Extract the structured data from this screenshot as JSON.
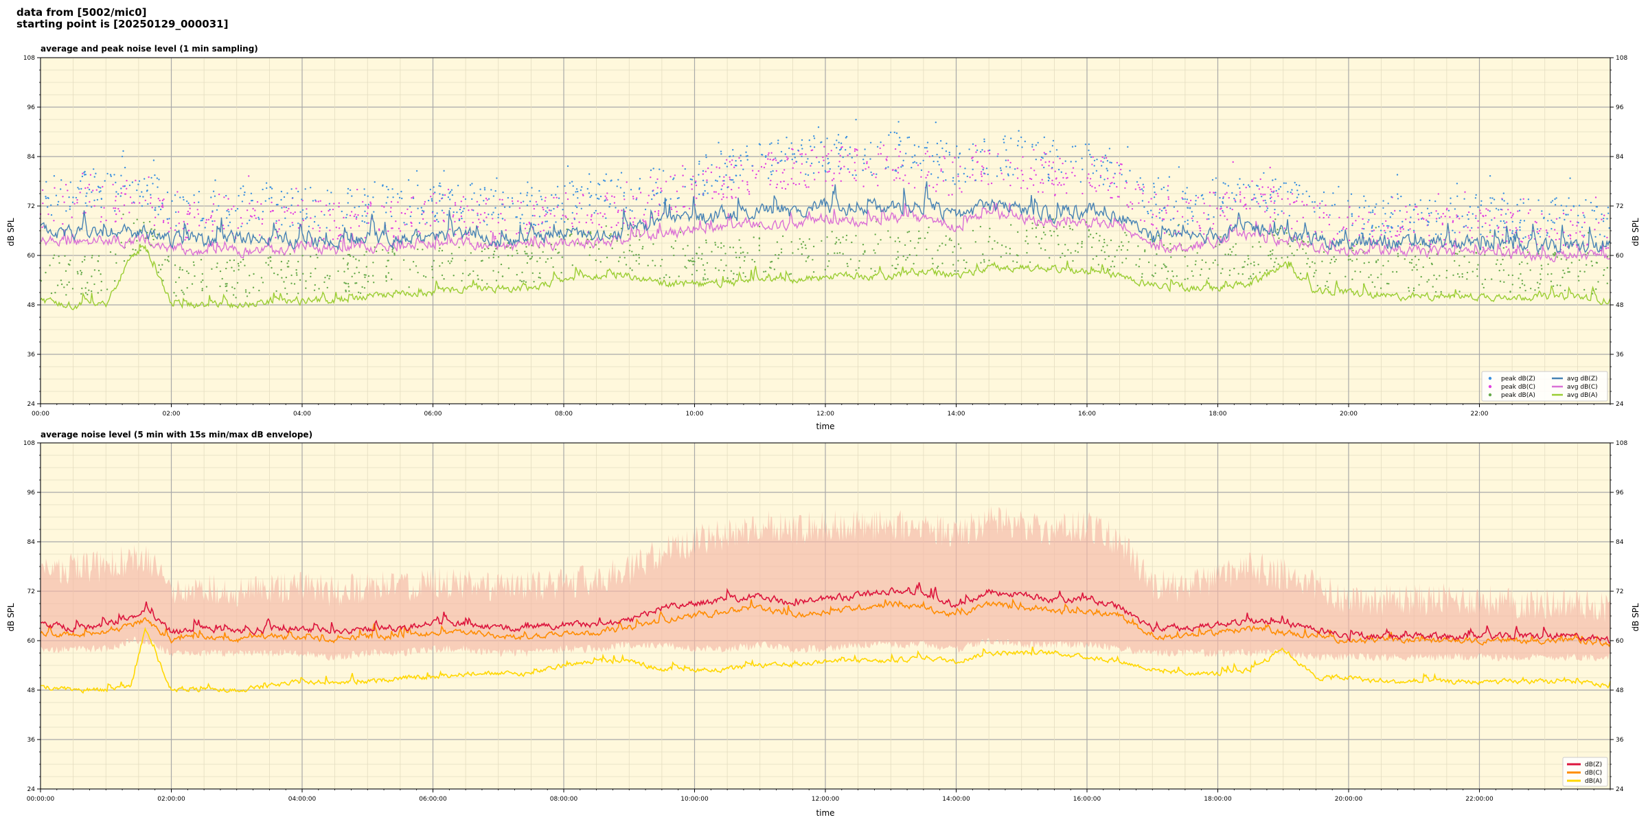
{
  "header": {
    "line1": "data from [5002/mic0]",
    "line2": "starting point is [20250129_000031]"
  },
  "colors": {
    "plot_bg": "#fff8dc",
    "peak_z": "#3a90e0",
    "peak_c": "#e040e0",
    "peak_a": "#66a94a",
    "avg_z": "#4682b4",
    "avg_c": "#da70d6",
    "avg_a": "#9acd32",
    "line_z": "#dc143c",
    "line_c": "#ff8c00",
    "line_a": "#ffd700",
    "envelope": "#f5b7a6"
  },
  "chart_data": [
    {
      "type": "line",
      "title": "average and peak noise level (1 min sampling)",
      "xlabel": "time",
      "ylabel": "dB SPL",
      "xlim": [
        0,
        24
      ],
      "ylim": [
        24,
        108
      ],
      "yticks": [
        "24",
        "36",
        "48",
        "60",
        "72",
        "84",
        "96",
        "108"
      ],
      "xticks": [
        "00:00",
        "02:00",
        "04:00",
        "06:00",
        "08:00",
        "10:00",
        "12:00",
        "14:00",
        "16:00",
        "18:00",
        "20:00",
        "22:00"
      ],
      "grid": true,
      "legend_position": "bottom-right",
      "legend": [
        "peak dB(Z)",
        "peak dB(C)",
        "peak dB(A)",
        "avg dB(Z)",
        "avg dB(C)",
        "avg dB(A)"
      ],
      "x": [
        0,
        0.5,
        1,
        1.4,
        1.6,
        2,
        2.5,
        3,
        3.5,
        4,
        4.5,
        5,
        5.5,
        6,
        6.5,
        7,
        7.5,
        8,
        8.5,
        9,
        9.5,
        10,
        10.5,
        11,
        11.5,
        12,
        12.5,
        13,
        13.5,
        14,
        14.5,
        15,
        15.5,
        16,
        16.5,
        17,
        17.5,
        18,
        18.5,
        19,
        19.5,
        20,
        20.5,
        21,
        21.5,
        22,
        22.5,
        23,
        23.5,
        24
      ],
      "series": [
        {
          "name": "avg dB(Z)",
          "values": [
            66,
            65,
            66,
            65,
            66,
            64,
            64,
            64,
            64,
            64,
            63,
            64,
            64,
            65,
            65,
            64,
            64,
            65,
            65,
            66,
            68,
            69,
            70,
            71,
            70,
            72,
            71,
            72,
            72,
            70,
            72,
            71,
            70,
            71,
            70,
            64,
            64,
            65,
            67,
            65,
            64,
            63,
            63,
            63,
            63,
            63,
            62,
            62,
            62,
            62
          ]
        },
        {
          "name": "avg dB(C)",
          "values": [
            64,
            63,
            64,
            63,
            64,
            62,
            61,
            61,
            61,
            62,
            61,
            62,
            62,
            63,
            63,
            62,
            62,
            63,
            63,
            64,
            65,
            66,
            67,
            68,
            67,
            69,
            68,
            69,
            69,
            67,
            70,
            69,
            68,
            68,
            67,
            62,
            62,
            63,
            65,
            63,
            62,
            61,
            61,
            61,
            61,
            61,
            60,
            60,
            60,
            60
          ]
        },
        {
          "name": "avg dB(A)",
          "values": [
            49,
            48,
            48,
            60,
            62,
            48,
            48,
            48,
            49,
            49,
            49,
            50,
            51,
            51,
            52,
            52,
            52,
            54,
            55,
            55,
            53,
            53,
            53,
            54,
            54,
            55,
            55,
            55,
            56,
            55,
            57,
            57,
            57,
            56,
            55,
            53,
            52,
            52,
            53,
            58,
            51,
            51,
            50,
            50,
            50,
            50,
            50,
            50,
            50,
            49
          ]
        },
        {
          "name": "peak dB(Z)",
          "values": [
            74,
            76,
            75,
            77,
            77,
            71,
            71,
            72,
            72,
            72,
            71,
            72,
            72,
            73,
            73,
            72,
            72,
            73,
            73,
            75,
            77,
            79,
            81,
            83,
            84,
            85,
            84,
            85,
            84,
            82,
            84,
            84,
            82,
            83,
            81,
            73,
            72,
            74,
            77,
            74,
            72,
            70,
            70,
            70,
            70,
            70,
            69,
            69,
            69,
            69
          ]
        },
        {
          "name": "peak dB(C)",
          "values": [
            71,
            73,
            72,
            74,
            74,
            68,
            68,
            69,
            69,
            69,
            68,
            69,
            69,
            70,
            70,
            69,
            69,
            70,
            70,
            72,
            74,
            76,
            78,
            80,
            81,
            82,
            81,
            82,
            81,
            79,
            81,
            81,
            79,
            80,
            78,
            70,
            69,
            71,
            74,
            71,
            69,
            67,
            67,
            67,
            67,
            67,
            66,
            66,
            66,
            66
          ]
        },
        {
          "name": "peak dB(A)",
          "values": [
            56,
            55,
            55,
            64,
            66,
            54,
            54,
            54,
            55,
            55,
            55,
            56,
            57,
            57,
            58,
            58,
            58,
            60,
            61,
            61,
            59,
            59,
            59,
            60,
            60,
            61,
            61,
            61,
            62,
            61,
            63,
            63,
            63,
            62,
            61,
            59,
            58,
            58,
            59,
            63,
            57,
            57,
            56,
            56,
            56,
            56,
            56,
            56,
            56,
            55
          ]
        }
      ]
    },
    {
      "type": "line",
      "title": "average noise level (5 min with 15s min/max dB envelope)",
      "xlabel": "time",
      "ylabel": "dB SPL",
      "xlim": [
        0,
        24
      ],
      "ylim": [
        24,
        108
      ],
      "yticks": [
        "24",
        "36",
        "48",
        "60",
        "72",
        "84",
        "96",
        "108"
      ],
      "xticks": [
        "00:00:00",
        "02:00:00",
        "04:00:00",
        "06:00:00",
        "08:00:00",
        "10:00:00",
        "12:00:00",
        "14:00:00",
        "16:00:00",
        "18:00:00",
        "20:00:00",
        "22:00:00"
      ],
      "grid": true,
      "legend_position": "bottom-right",
      "legend": [
        "dB(Z)",
        "dB(C)",
        "dB(A)"
      ],
      "x": [
        0,
        0.5,
        1,
        1.4,
        1.6,
        2,
        2.5,
        3,
        3.5,
        4,
        4.5,
        5,
        5.5,
        6,
        6.5,
        7,
        7.5,
        8,
        8.5,
        9,
        9.5,
        10,
        10.5,
        11,
        11.5,
        12,
        12.5,
        13,
        13.5,
        14,
        14.5,
        15,
        15.5,
        16,
        16.5,
        17,
        17.5,
        18,
        18.5,
        19,
        19.5,
        20,
        20.5,
        21,
        21.5,
        22,
        22.5,
        23,
        23.5,
        24
      ],
      "series": [
        {
          "name": "dB(Z)",
          "values": [
            64,
            63,
            64,
            66,
            68,
            62,
            63,
            62,
            63,
            63,
            62,
            63,
            63,
            64,
            64,
            63,
            63,
            64,
            64,
            65,
            68,
            69,
            70,
            71,
            69,
            70,
            71,
            72,
            71,
            68,
            72,
            71,
            70,
            70,
            68,
            63,
            63,
            64,
            65,
            64,
            63,
            61,
            61,
            61,
            61,
            61,
            61,
            61,
            61,
            60
          ]
        },
        {
          "name": "dB(C)",
          "values": [
            62,
            61,
            62,
            64,
            65,
            60,
            61,
            60,
            61,
            61,
            60,
            61,
            61,
            62,
            62,
            61,
            61,
            62,
            62,
            63,
            65,
            66,
            67,
            68,
            66,
            67,
            68,
            69,
            68,
            66,
            69,
            68,
            67,
            67,
            66,
            61,
            61,
            62,
            63,
            62,
            61,
            60,
            60,
            60,
            60,
            60,
            60,
            60,
            60,
            59
          ]
        },
        {
          "name": "dB(A)",
          "values": [
            49,
            48,
            48,
            49,
            63,
            48,
            48,
            48,
            49,
            50,
            50,
            50,
            51,
            51,
            52,
            52,
            52,
            54,
            55,
            55,
            53,
            53,
            53,
            54,
            54,
            55,
            55,
            55,
            56,
            55,
            57,
            57,
            57,
            56,
            55,
            53,
            52,
            52,
            53,
            58,
            51,
            51,
            50,
            50,
            50,
            50,
            50,
            50,
            50,
            49
          ]
        }
      ],
      "envelope": {
        "name": "dB(C) min/max",
        "min": [
          58,
          58,
          58,
          60,
          60,
          57,
          57,
          57,
          57,
          57,
          56,
          57,
          57,
          58,
          58,
          57,
          57,
          58,
          58,
          59,
          59,
          58,
          58,
          59,
          58,
          58,
          59,
          59,
          59,
          58,
          60,
          59,
          59,
          59,
          58,
          57,
          57,
          57,
          57,
          57,
          56,
          56,
          56,
          56,
          56,
          56,
          56,
          56,
          56,
          56
        ],
        "max": [
          76,
          78,
          78,
          80,
          80,
          72,
          73,
          72,
          73,
          73,
          72,
          73,
          73,
          74,
          74,
          73,
          73,
          74,
          75,
          77,
          82,
          84,
          86,
          88,
          87,
          88,
          88,
          88,
          88,
          86,
          89,
          88,
          87,
          88,
          84,
          74,
          73,
          75,
          78,
          76,
          73,
          70,
          70,
          70,
          70,
          70,
          69,
          69,
          69,
          68
        ]
      }
    }
  ]
}
